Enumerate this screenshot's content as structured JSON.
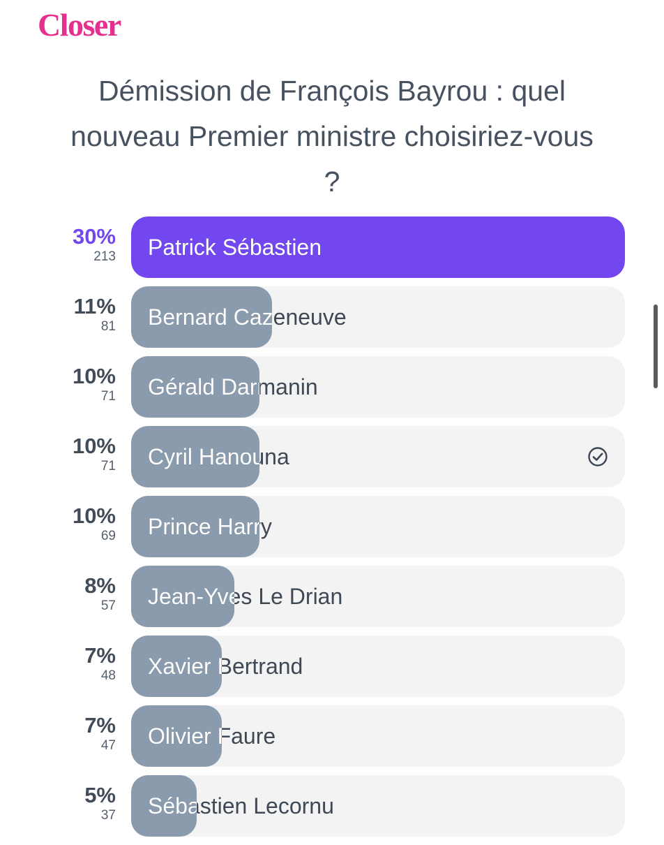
{
  "brand": {
    "name": "Closer",
    "color": "#e5308f"
  },
  "poll": {
    "question": "Démission de François Bayrou : quel nouveau Premier ministre choisiriez-vous ?",
    "leader_color": "#7247f0",
    "bar_color": "#8a9bad",
    "track_color": "#f3f3f3",
    "options": [
      {
        "name": "Patrick Sébastien",
        "percent_label": "30%",
        "votes": "213",
        "percent": 30,
        "leader": true,
        "selected": false
      },
      {
        "name": "Bernard Cazeneuve",
        "percent_label": "11%",
        "votes": "81",
        "percent": 11,
        "leader": false,
        "selected": false
      },
      {
        "name": "Gérald Darmanin",
        "percent_label": "10%",
        "votes": "71",
        "percent": 10,
        "leader": false,
        "selected": false
      },
      {
        "name": "Cyril Hanouna",
        "percent_label": "10%",
        "votes": "71",
        "percent": 10,
        "leader": false,
        "selected": true,
        "selected_icon": "check-circle-icon"
      },
      {
        "name": "Prince Harry",
        "percent_label": "10%",
        "votes": "69",
        "percent": 10,
        "leader": false,
        "selected": false
      },
      {
        "name": "Jean-Yves Le Drian",
        "percent_label": "8%",
        "votes": "57",
        "percent": 8,
        "leader": false,
        "selected": false
      },
      {
        "name": "Xavier Bertrand",
        "percent_label": "7%",
        "votes": "48",
        "percent": 7,
        "leader": false,
        "selected": false
      },
      {
        "name": "Olivier Faure",
        "percent_label": "7%",
        "votes": "47",
        "percent": 7,
        "leader": false,
        "selected": false
      },
      {
        "name": "Sébastien Lecornu",
        "percent_label": "5%",
        "votes": "37",
        "percent": 5,
        "leader": false,
        "selected": false
      }
    ]
  }
}
